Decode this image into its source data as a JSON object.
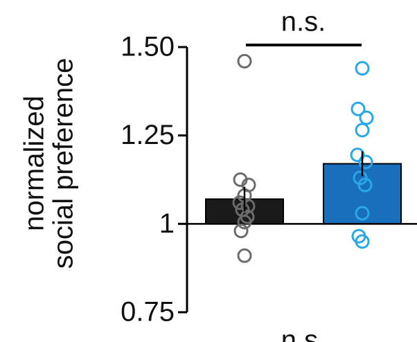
{
  "chart_data": {
    "type": "bar",
    "ylabel": [
      "normalized",
      "social preference"
    ],
    "categories": [
      null,
      null
    ],
    "values": [
      1.07,
      1.17
    ],
    "errors": [
      0.035,
      0.035
    ],
    "colors": [
      "#1a1a1a",
      "#1a6fbd"
    ],
    "points": [
      [
        1.46,
        1.125,
        1.11,
        1.08,
        1.06,
        1.05,
        1.04,
        1.02,
        1.005,
        0.98,
        0.91
      ],
      [
        1.44,
        1.325,
        1.3,
        1.265,
        1.195,
        1.175,
        1.13,
        1.11,
        1.03,
        0.965,
        0.95
      ]
    ],
    "point_colors": [
      "#6b6b6b",
      "#29a8e6"
    ],
    "baseline": 1,
    "ylim": [
      0.75,
      1.5
    ],
    "yticks": [
      0.75,
      1,
      1.25,
      {
        "value": 1.5,
        "label": "1.50"
      }
    ],
    "annotations": [
      "n.s.",
      "n.s."
    ]
  }
}
